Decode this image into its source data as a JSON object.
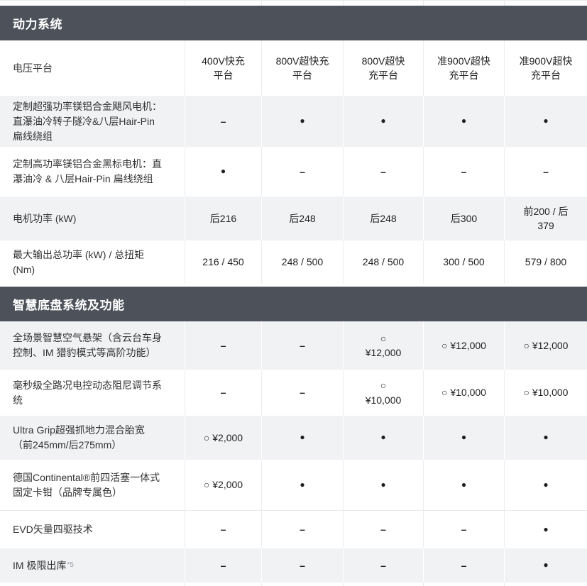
{
  "colors": {
    "header_bg": "#4d525a",
    "header_text": "#ffffff",
    "row_gray": "#f1f2f4",
    "divider": "#e9e9eb",
    "label_text": "#333333",
    "value_text": "#1f1f1f",
    "sup_color": "#9aa0a8"
  },
  "legend_symbols": {
    "standard": "●",
    "optional": "○",
    "not_available": "–"
  },
  "sections": [
    {
      "title": "动力系统",
      "rows": [
        {
          "label": "电压平台",
          "bg": "white",
          "values": [
            "400V快充\n平台",
            "800V超快充\n平台",
            "800V超快\n充平台",
            "准900V超快\n充平台",
            "准900V超快\n充平台"
          ]
        },
        {
          "label": "定制超强功率镁铝合金飓风电机：\n直瀑油冷转子隧冷&八层Hair-Pin\n扁线绕组",
          "bg": "gray",
          "values": [
            "–",
            "●",
            "●",
            "●",
            "●"
          ]
        },
        {
          "label": "定制高功率镁铝合金黑标电机：直\n瀑油冷 & 八层Hair-Pin 扁线绕组",
          "bg": "white",
          "values": [
            "●",
            "–",
            "–",
            "–",
            "–"
          ]
        },
        {
          "label": "电机功率 (kW)",
          "bg": "gray",
          "values": [
            "后216",
            "后248",
            "后248",
            "后300",
            "前200 / 后\n379"
          ]
        },
        {
          "label": "最大输出总功率 (kW) / 总扭矩\n(Nm)",
          "bg": "white",
          "values": [
            "216 / 450",
            "248 / 500",
            "248 / 500",
            "300 / 500",
            "579 / 800"
          ]
        }
      ]
    },
    {
      "title": "智慧底盘系统及功能",
      "rows": [
        {
          "label": "全场景智慧空气悬架（含云台车身\n控制、IM 猎豹模式等高阶功能）",
          "bg": "gray",
          "values": [
            "–",
            "–",
            "○\n¥12,000",
            "○ ¥12,000",
            "○ ¥12,000"
          ]
        },
        {
          "label": "毫秒级全路况电控动态阻尼调节系\n统",
          "bg": "white",
          "values": [
            "–",
            "–",
            "○\n¥10,000",
            "○ ¥10,000",
            "○ ¥10,000"
          ]
        },
        {
          "label": "Ultra Grip超强抓地力混合胎宽\n（前245mm/后275mm）",
          "bg": "gray",
          "values": [
            "○ ¥2,000",
            "●",
            "●",
            "●",
            "●"
          ]
        },
        {
          "label": "德国Continental®前四活塞一体式\n固定卡钳（品牌专属色）",
          "bg": "white",
          "values": [
            "○ ¥2,000",
            "●",
            "●",
            "●",
            "●"
          ]
        },
        {
          "label": "EVD矢量四驱技术",
          "bg": "white",
          "hairline_top": true,
          "values": [
            "–",
            "–",
            "–",
            "–",
            "●"
          ]
        },
        {
          "label": "IM 极限出库",
          "label_sup": "*5",
          "bg": "gray",
          "values": [
            "–",
            "–",
            "–",
            "–",
            "●"
          ]
        }
      ]
    }
  ]
}
